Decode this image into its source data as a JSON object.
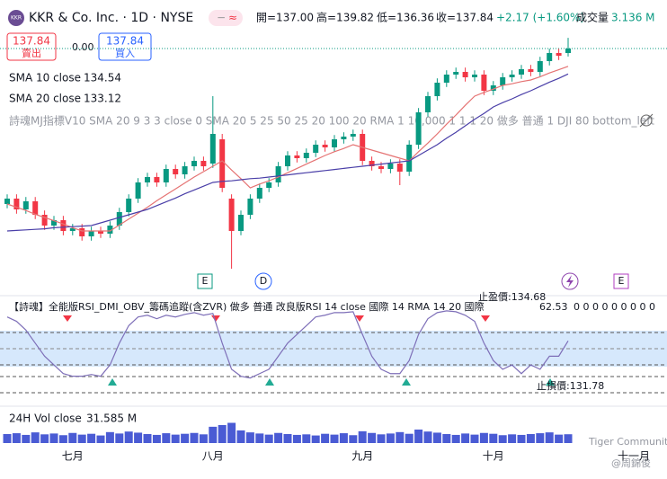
{
  "header": {
    "symbol": "KKR",
    "title": "KKR & Co. Inc. · 1D · NYSE",
    "open": "開=137.00",
    "high": "高=139.82",
    "low": "低=136.36",
    "close": "收=137.84",
    "change": "+2.17 (+1.60%)",
    "volume_label": "成交量",
    "volume": "3.136 M",
    "sell_price": "137.84",
    "sell": "賣出",
    "spread": "0.00",
    "buy_price": "137.84",
    "buy": "買入",
    "indicator": "詩魂MJ指標V10 SMA 20 9 3 3 close 0 SMA 20 5 25 50 25 20 100 20 RMA 1 10,000 1 1 1 20 做多 普通 1 DJI 80 bottom_left",
    "events": [
      "E",
      "D",
      "E"
    ],
    "watermark": "Tiger Community",
    "author": "@周錦俊"
  },
  "chart_data": [
    {
      "type": "candlestick",
      "categories": [
        null,
        null,
        null,
        null,
        null,
        null,
        null,
        "七月",
        null,
        null,
        null,
        null,
        null,
        null,
        null,
        null,
        null,
        null,
        null,
        null,
        null,
        null,
        "八月",
        null,
        null,
        null,
        null,
        null,
        null,
        null,
        null,
        null,
        null,
        null,
        null,
        null,
        null,
        null,
        "九月",
        null,
        null,
        null,
        null,
        null,
        null,
        null,
        null,
        null,
        null,
        null,
        null,
        null,
        "十月",
        null,
        null,
        null,
        null,
        null,
        null,
        null,
        null
      ],
      "extra_labels": [
        "十一月"
      ],
      "open": [
        109,
        110,
        108,
        109.5,
        107,
        105,
        106,
        104,
        104.5,
        103,
        104,
        103.5,
        105,
        107.5,
        110,
        113,
        114,
        113,
        115.5,
        114.5,
        116,
        117,
        116.5,
        121,
        110,
        104,
        107,
        110,
        112,
        113,
        116,
        118,
        117.5,
        118.5,
        120,
        119.5,
        121,
        121.5,
        122,
        117,
        116,
        115.5,
        116.5,
        115,
        120,
        126,
        129,
        131.5,
        133,
        133.5,
        132.5,
        133,
        130,
        131,
        132.5,
        133,
        134,
        133.5,
        135.5,
        137,
        137
      ],
      "high": [
        110.8,
        110.8,
        110.3,
        110.3,
        107.8,
        106.8,
        106.8,
        105.3,
        105.3,
        104.8,
        104.8,
        105.8,
        108.3,
        110.8,
        113.8,
        114.8,
        114.8,
        116.3,
        116.3,
        116.8,
        117.8,
        117.8,
        129,
        122,
        110.8,
        107.8,
        110.8,
        112.8,
        113.8,
        116.8,
        118.8,
        118.8,
        119.3,
        120.8,
        120.8,
        121.8,
        122.3,
        122.8,
        122.8,
        117.8,
        116.8,
        117.3,
        117.3,
        120.8,
        126.8,
        129.8,
        132.3,
        133.8,
        134.3,
        134.3,
        133.8,
        133.8,
        131.8,
        133.3,
        133.8,
        134.8,
        134.8,
        136.3,
        137.8,
        137.8,
        139.82
      ],
      "low": [
        108.2,
        107.2,
        107.2,
        106.2,
        104.2,
        104.2,
        103.2,
        103.2,
        102.2,
        102.2,
        102.7,
        102.7,
        104.2,
        106.7,
        109.2,
        112.2,
        112.2,
        112.2,
        113.7,
        113.7,
        115.2,
        115.2,
        115.7,
        111.2,
        97,
        103.2,
        106.2,
        109.2,
        111.2,
        112.2,
        115.2,
        116.7,
        116.7,
        117.7,
        118.7,
        118.7,
        120.2,
        120.7,
        116.2,
        115.2,
        114.7,
        114.7,
        112.5,
        114.2,
        119.2,
        125.2,
        128.2,
        130.7,
        132.2,
        131.7,
        131.7,
        129.2,
        129.2,
        130.2,
        131.7,
        132.2,
        132.7,
        132.7,
        134.7,
        135.7,
        136.36
      ],
      "close": [
        110,
        108,
        109.5,
        107,
        105,
        106,
        104,
        104.5,
        103,
        104,
        103.5,
        105,
        107.5,
        110,
        113,
        114,
        113,
        115.5,
        114.5,
        116,
        117,
        116,
        122,
        112,
        104,
        107,
        110,
        112,
        113,
        116,
        118,
        117.5,
        118.5,
        120,
        119.5,
        121,
        121.5,
        122,
        117,
        116,
        115.5,
        116.5,
        115,
        120,
        126,
        129,
        131.5,
        133,
        133.5,
        132.5,
        133,
        130,
        131,
        132.5,
        133,
        134,
        133.5,
        135.5,
        137,
        136.5,
        137.84
      ],
      "up_color": "#089981",
      "down_color": "#f23645",
      "series": [
        {
          "name": "SMA 10 close",
          "color": "#e57373",
          "values": [
            109,
            108.4,
            107.8,
            107.1,
            106.5,
            105.9,
            105.3,
            104.6,
            104,
            104,
            104,
            104,
            105.1,
            106.2,
            107.3,
            108.4,
            109.6,
            110.7,
            111.8,
            112.9,
            114,
            115,
            116,
            117,
            115.3,
            113.7,
            112,
            112.7,
            113.3,
            114,
            114.8,
            115.6,
            116.4,
            117.2,
            118,
            118.7,
            119.3,
            120,
            119.5,
            119,
            118.5,
            118,
            117.5,
            117,
            118.7,
            120.3,
            122,
            123.8,
            125.5,
            127.3,
            129,
            129.7,
            130.3,
            131,
            131.3,
            131.7,
            132,
            132.6,
            133.3,
            133.9,
            134.54
          ]
        },
        {
          "name": "SMA 20 close",
          "color": "#4a3fa8",
          "values": [
            104,
            104.1,
            104.2,
            104.3,
            104.4,
            104.6,
            104.7,
            104.8,
            104.9,
            105,
            105.5,
            106,
            106.5,
            107,
            107.5,
            108,
            108.7,
            109.4,
            110.1,
            110.9,
            111.6,
            112.3,
            113,
            113.2,
            113.3,
            113.5,
            113.7,
            113.8,
            114,
            114.2,
            114.4,
            114.6,
            114.8,
            115,
            115.2,
            115.4,
            115.6,
            115.8,
            116,
            116.2,
            116.4,
            116.6,
            116.8,
            117,
            118,
            119,
            120,
            121.2,
            122.3,
            123.5,
            124.7,
            125.8,
            127,
            127.8,
            128.5,
            129.3,
            130,
            130.8,
            131.6,
            132.3,
            133.12
          ]
        }
      ],
      "ylim": [
        96,
        141
      ]
    },
    {
      "type": "line",
      "title": "【詩魂】全能版RSI_DMI_OBV_籌碼追蹤(含ZVR) 做多 普通 改良版RSI 14 close 國際 14 RMA 14 20 國際",
      "extra": "0 0 0 0 0 0 0 0 0",
      "color": "#7e6fb8",
      "ylim": [
        0,
        100
      ],
      "values": [
        90,
        85,
        75,
        60,
        45,
        35,
        25,
        22,
        22,
        24,
        22,
        35,
        60,
        80,
        90,
        92,
        88,
        92,
        90,
        93,
        95,
        92,
        94,
        60,
        30,
        22,
        20,
        25,
        30,
        45,
        60,
        70,
        80,
        90,
        92,
        95,
        95,
        96,
        70,
        45,
        30,
        25,
        25,
        40,
        70,
        88,
        95,
        97,
        96,
        92,
        85,
        60,
        40,
        30,
        35,
        25,
        35,
        30,
        45,
        45,
        62.53
      ],
      "annotations": [
        "止盈價:134.68",
        "止損價:131.78"
      ]
    },
    {
      "type": "bar",
      "name": "24H Vol close",
      "legend_value": "31.585 M",
      "color": "#4a5bd4",
      "ylim": [
        0,
        8
      ],
      "values": [
        3.2,
        3.5,
        2.9,
        3.8,
        3.1,
        3.4,
        2.8,
        3.6,
        3.0,
        3.3,
        2.7,
        3.9,
        3.4,
        4.1,
        3.7,
        3.2,
        2.9,
        3.5,
        3.0,
        3.3,
        3.6,
        3.1,
        5.8,
        6.4,
        7.2,
        4.5,
        3.8,
        3.4,
        3.0,
        3.6,
        3.2,
        2.9,
        3.1,
        2.7,
        3.3,
        3.0,
        3.5,
        2.8,
        4.2,
        3.6,
        3.1,
        3.4,
        3.9,
        3.3,
        4.8,
        4.1,
        3.7,
        3.2,
        2.9,
        3.4,
        3.0,
        3.6,
        3.3,
        2.8,
        3.1,
        2.9,
        3.2,
        3.5,
        3.8,
        3.0,
        3.136
      ]
    }
  ]
}
